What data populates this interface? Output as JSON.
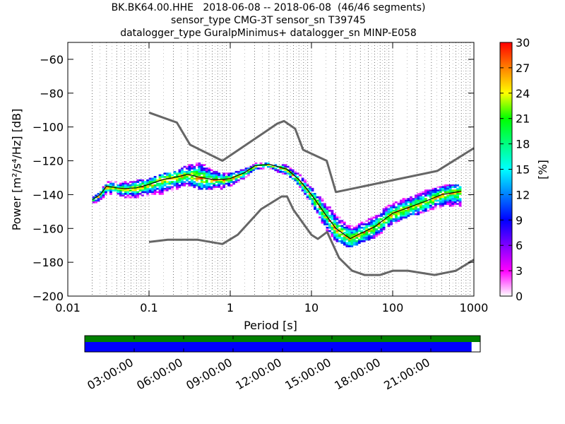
{
  "titles": {
    "line1": "BK.BK64.00.HHE   2018-06-08 -- 2018-06-08  (46/46 segments)",
    "line2": "sensor_type CMG-3T sensor_sn T39745",
    "line3": "datalogger_type GuralpMinimus+ datalogger_sn MINP-E058"
  },
  "chart_data": {
    "type": "heatmap",
    "xlabel": "Period [s]",
    "ylabel": "Power [m²/s⁴/Hz] [dB]",
    "xscale": "log",
    "xlim": [
      0.01,
      1000
    ],
    "ylim": [
      -200,
      -50
    ],
    "x_ticks": [
      {
        "value": 0.01,
        "label": "0.01"
      },
      {
        "value": 0.1,
        "label": "0.1"
      },
      {
        "value": 1,
        "label": "1"
      },
      {
        "value": 10,
        "label": "10"
      },
      {
        "value": 100,
        "label": "100"
      },
      {
        "value": 1000,
        "label": "1000"
      }
    ],
    "y_ticks": [
      {
        "value": -60,
        "label": "−60"
      },
      {
        "value": -80,
        "label": "−80"
      },
      {
        "value": -100,
        "label": "−100"
      },
      {
        "value": -120,
        "label": "−120"
      },
      {
        "value": -140,
        "label": "−140"
      },
      {
        "value": -160,
        "label": "−160"
      },
      {
        "value": -180,
        "label": "−180"
      },
      {
        "value": -200,
        "label": "−200"
      }
    ],
    "grid": "dotted vertical",
    "colorbar": {
      "label": "[%]",
      "min": 0,
      "max": 30,
      "ticks": [
        "0",
        "3",
        "6",
        "9",
        "12",
        "15",
        "18",
        "21",
        "24",
        "27",
        "30"
      ],
      "colors": [
        "#ffffff",
        "#ff00ff",
        "#7f00ff",
        "#0000ff",
        "#0080ff",
        "#00ffff",
        "#00ff80",
        "#00ff00",
        "#ffff00",
        "#ff8000",
        "#ff0000"
      ]
    },
    "noise_model_color": "#666666",
    "mode_line_color": "#000000",
    "nhnm": {
      "name": "NHNM",
      "x": [
        0.1,
        0.22,
        0.32,
        0.8,
        3.8,
        4.6,
        6.3,
        7.9,
        15.4,
        20,
        354.8,
        1000
      ],
      "y": [
        -91.5,
        -97.4,
        -110.5,
        -120,
        -98,
        -96.5,
        -101,
        -113.5,
        -120,
        -138.5,
        -126,
        -112.5
      ]
    },
    "nlnm": {
      "name": "NLNM",
      "x": [
        0.1,
        0.17,
        0.4,
        0.8,
        1.24,
        2.4,
        4.3,
        5,
        6,
        10,
        12,
        15.6,
        21.9,
        31.6,
        45,
        70,
        101,
        154,
        328,
        600,
        1000
      ],
      "y": [
        -168,
        -166.7,
        -166.7,
        -169.2,
        -163.7,
        -148.6,
        -141.1,
        -141.1,
        -149,
        -163.8,
        -166.2,
        -162.1,
        -177.5,
        -185,
        -187.5,
        -187.5,
        -185,
        -185,
        -187.5,
        -185,
        -178.5
      ]
    },
    "mode": {
      "x": [
        0.02,
        0.025,
        0.03,
        0.04,
        0.05,
        0.07,
        0.1,
        0.15,
        0.2,
        0.3,
        0.4,
        0.6,
        0.8,
        1,
        1.5,
        2,
        3,
        5,
        7,
        10,
        15,
        20,
        30,
        40,
        60,
        100,
        150,
        250,
        400,
        700
      ],
      "y": [
        -143,
        -140,
        -135,
        -136,
        -136.5,
        -136,
        -134,
        -131,
        -130,
        -128,
        -129.5,
        -131,
        -131,
        -130.5,
        -127,
        -123,
        -122,
        -125,
        -131,
        -140,
        -152,
        -160,
        -166,
        -163,
        -159,
        -151,
        -148,
        -144,
        -140,
        -138
      ]
    },
    "band": {
      "x": [
        0.02,
        0.025,
        0.03,
        0.04,
        0.05,
        0.07,
        0.1,
        0.15,
        0.2,
        0.3,
        0.4,
        0.6,
        0.8,
        1,
        1.5,
        2,
        3,
        5,
        7,
        10,
        15,
        20,
        30,
        40,
        60,
        100,
        150,
        250,
        400,
        700
      ],
      "upper": [
        -141,
        -138,
        -131,
        -132,
        -132,
        -131,
        -130,
        -127,
        -126,
        -122,
        -119,
        -125,
        -127,
        -127,
        -124,
        -121,
        -121,
        -122,
        -127,
        -135,
        -144,
        -151,
        -158,
        -156,
        -152,
        -144,
        -141,
        -137,
        -134,
        -134
      ],
      "lower": [
        -145,
        -143,
        -139,
        -140,
        -141,
        -142,
        -140,
        -139,
        -137,
        -134,
        -136,
        -137,
        -136,
        -135,
        -130,
        -125,
        -124,
        -128,
        -134,
        -146,
        -160,
        -167,
        -171,
        -168,
        -165,
        -157,
        -153,
        -150,
        -147,
        -146
      ]
    },
    "coverage": {
      "ticks": [
        "03:00:00",
        "06:00:00",
        "09:00:00",
        "12:00:00",
        "15:00:00",
        "18:00:00",
        "21:00:00"
      ],
      "data_color": "#008000",
      "psd_color": "#0000ff",
      "data_fraction": 1.0,
      "psd_fraction": 0.978
    }
  }
}
